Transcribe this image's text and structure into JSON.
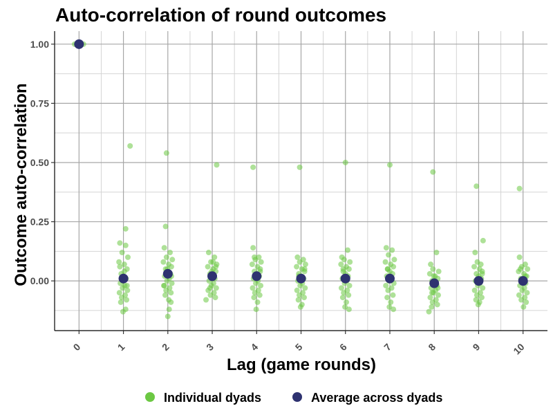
{
  "chart_data": {
    "type": "scatter",
    "title": "Auto-correlation of round outcomes",
    "xlabel": "Lag (game rounds)",
    "ylabel": "Outcome auto-correlation",
    "x_ticks": [
      "0",
      "1",
      "2",
      "3",
      "4",
      "5",
      "6",
      "7",
      "8",
      "9",
      "10"
    ],
    "y_ticks": [
      "0.00",
      "0.25",
      "0.50",
      "0.75",
      "1.00"
    ],
    "xlim": [
      -0.55,
      10.55
    ],
    "ylim": [
      -0.21,
      1.055
    ],
    "grid": true,
    "legend_position": "bottom",
    "colors": {
      "individual": "#6cc843",
      "average": "#2e3270"
    },
    "series": [
      {
        "name": "Individual dyads",
        "points": [
          [
            -0.05,
            1.0
          ],
          [
            0.03,
            1.0
          ],
          [
            0.1,
            1.0
          ],
          [
            -0.1,
            1.0
          ],
          [
            0.05,
            1.0
          ],
          [
            0.92,
            0.16
          ],
          [
            1.05,
            0.15
          ],
          [
            0.97,
            0.12
          ],
          [
            1.1,
            0.1
          ],
          [
            0.9,
            0.08
          ],
          [
            1.02,
            0.07
          ],
          [
            1.08,
            0.05
          ],
          [
            0.95,
            0.03
          ],
          [
            1.0,
            0.02
          ],
          [
            1.06,
            0.01
          ],
          [
            0.93,
            -0.01
          ],
          [
            1.03,
            -0.02
          ],
          [
            0.98,
            -0.03
          ],
          [
            1.09,
            -0.04
          ],
          [
            0.91,
            -0.05
          ],
          [
            1.04,
            -0.06
          ],
          [
            0.96,
            -0.07
          ],
          [
            1.07,
            -0.08
          ],
          [
            0.94,
            -0.09
          ],
          [
            1.02,
            0.04
          ],
          [
            0.99,
            0.0
          ],
          [
            1.08,
            -0.02
          ],
          [
            0.92,
            0.06
          ],
          [
            1.05,
            0.22
          ],
          [
            1.15,
            0.57
          ],
          [
            0.99,
            -0.13
          ],
          [
            1.05,
            -0.12
          ],
          [
            1.92,
            0.14
          ],
          [
            2.05,
            0.12
          ],
          [
            1.97,
            0.1
          ],
          [
            2.1,
            0.09
          ],
          [
            1.9,
            0.08
          ],
          [
            2.02,
            0.07
          ],
          [
            2.08,
            0.06
          ],
          [
            1.95,
            0.05
          ],
          [
            2.0,
            0.04
          ],
          [
            2.06,
            0.03
          ],
          [
            1.93,
            0.02
          ],
          [
            2.03,
            0.01
          ],
          [
            1.98,
            0.0
          ],
          [
            2.09,
            -0.01
          ],
          [
            1.91,
            -0.02
          ],
          [
            2.04,
            -0.03
          ],
          [
            1.96,
            -0.04
          ],
          [
            2.07,
            -0.05
          ],
          [
            1.94,
            -0.06
          ],
          [
            2.02,
            -0.08
          ],
          [
            1.99,
            0.05
          ],
          [
            2.08,
            0.02
          ],
          [
            1.95,
            0.23
          ],
          [
            1.97,
            0.54
          ],
          [
            2.03,
            -0.12
          ],
          [
            2.0,
            -0.15
          ],
          [
            2.07,
            -0.09
          ],
          [
            1.92,
            -0.02
          ],
          [
            2.92,
            0.12
          ],
          [
            3.05,
            0.1
          ],
          [
            2.97,
            0.08
          ],
          [
            3.1,
            0.07
          ],
          [
            2.9,
            0.06
          ],
          [
            3.02,
            0.05
          ],
          [
            3.08,
            0.04
          ],
          [
            2.95,
            0.03
          ],
          [
            3.0,
            0.02
          ],
          [
            3.06,
            0.01
          ],
          [
            2.93,
            0.0
          ],
          [
            3.03,
            -0.01
          ],
          [
            2.98,
            -0.02
          ],
          [
            3.09,
            -0.03
          ],
          [
            2.91,
            -0.04
          ],
          [
            3.04,
            -0.05
          ],
          [
            2.96,
            -0.06
          ],
          [
            3.07,
            -0.07
          ],
          [
            2.86,
            -0.08
          ],
          [
            3.02,
            0.08
          ],
          [
            2.99,
            0.04
          ],
          [
            3.08,
            0.06
          ],
          [
            2.95,
            -0.03
          ],
          [
            3.1,
            0.49
          ],
          [
            3.92,
            0.14
          ],
          [
            4.05,
            0.1
          ],
          [
            3.97,
            0.09
          ],
          [
            4.1,
            0.08
          ],
          [
            3.9,
            0.07
          ],
          [
            4.02,
            0.06
          ],
          [
            4.08,
            0.05
          ],
          [
            3.95,
            0.04
          ],
          [
            4.0,
            0.03
          ],
          [
            4.06,
            0.02
          ],
          [
            3.93,
            0.01
          ],
          [
            4.03,
            0.0
          ],
          [
            3.98,
            -0.01
          ],
          [
            4.09,
            -0.02
          ],
          [
            3.91,
            -0.03
          ],
          [
            4.04,
            -0.04
          ],
          [
            3.96,
            -0.05
          ],
          [
            4.07,
            -0.06
          ],
          [
            3.94,
            -0.07
          ],
          [
            4.02,
            -0.09
          ],
          [
            3.99,
            -0.12
          ],
          [
            4.08,
            0.04
          ],
          [
            3.95,
            0.1
          ],
          [
            3.92,
            0.48
          ],
          [
            4.92,
            0.1
          ],
          [
            5.05,
            0.09
          ],
          [
            4.97,
            0.08
          ],
          [
            5.1,
            0.07
          ],
          [
            4.9,
            0.06
          ],
          [
            5.02,
            0.05
          ],
          [
            5.08,
            0.04
          ],
          [
            4.95,
            0.03
          ],
          [
            5.0,
            0.02
          ],
          [
            5.06,
            0.01
          ],
          [
            4.93,
            0.0
          ],
          [
            5.03,
            -0.01
          ],
          [
            4.98,
            -0.02
          ],
          [
            5.09,
            -0.03
          ],
          [
            4.91,
            -0.04
          ],
          [
            5.04,
            -0.05
          ],
          [
            4.96,
            -0.06
          ],
          [
            5.07,
            -0.07
          ],
          [
            4.94,
            -0.08
          ],
          [
            5.02,
            -0.1
          ],
          [
            4.99,
            -0.11
          ],
          [
            5.08,
            0.05
          ],
          [
            4.95,
            0.02
          ],
          [
            4.97,
            0.48
          ],
          [
            5.92,
            0.1
          ],
          [
            6.05,
            0.13
          ],
          [
            5.97,
            0.09
          ],
          [
            6.1,
            0.08
          ],
          [
            5.9,
            0.07
          ],
          [
            6.02,
            0.06
          ],
          [
            6.08,
            0.05
          ],
          [
            5.95,
            0.04
          ],
          [
            6.0,
            0.03
          ],
          [
            6.06,
            0.02
          ],
          [
            5.93,
            0.01
          ],
          [
            6.03,
            0.0
          ],
          [
            5.98,
            -0.01
          ],
          [
            6.09,
            -0.02
          ],
          [
            5.91,
            -0.03
          ],
          [
            6.04,
            -0.04
          ],
          [
            5.96,
            -0.05
          ],
          [
            6.07,
            -0.06
          ],
          [
            5.94,
            -0.07
          ],
          [
            6.02,
            -0.09
          ],
          [
            5.99,
            -0.11
          ],
          [
            6.08,
            -0.12
          ],
          [
            5.95,
            0.05
          ],
          [
            6.0,
            0.5
          ],
          [
            6.92,
            0.14
          ],
          [
            7.05,
            0.13
          ],
          [
            6.97,
            0.11
          ],
          [
            7.1,
            0.09
          ],
          [
            6.9,
            0.08
          ],
          [
            7.02,
            0.07
          ],
          [
            7.08,
            0.06
          ],
          [
            6.95,
            0.05
          ],
          [
            7.0,
            0.04
          ],
          [
            7.06,
            0.03
          ],
          [
            6.93,
            0.02
          ],
          [
            7.03,
            0.01
          ],
          [
            6.98,
            0.0
          ],
          [
            7.09,
            -0.01
          ],
          [
            6.91,
            -0.02
          ],
          [
            7.04,
            -0.03
          ],
          [
            6.96,
            -0.04
          ],
          [
            7.07,
            -0.06
          ],
          [
            6.94,
            -0.07
          ],
          [
            7.02,
            -0.09
          ],
          [
            6.99,
            -0.11
          ],
          [
            7.08,
            -0.12
          ],
          [
            6.95,
            0.05
          ],
          [
            7.0,
            0.49
          ],
          [
            7.92,
            0.07
          ],
          [
            8.05,
            0.12
          ],
          [
            7.97,
            0.05
          ],
          [
            8.1,
            0.04
          ],
          [
            7.9,
            0.03
          ],
          [
            8.02,
            0.02
          ],
          [
            8.08,
            0.01
          ],
          [
            7.95,
            0.0
          ],
          [
            8.0,
            -0.01
          ],
          [
            8.06,
            -0.02
          ],
          [
            7.93,
            -0.03
          ],
          [
            8.03,
            -0.04
          ],
          [
            7.98,
            -0.05
          ],
          [
            8.09,
            -0.06
          ],
          [
            7.91,
            -0.07
          ],
          [
            8.04,
            -0.08
          ],
          [
            7.96,
            -0.09
          ],
          [
            8.07,
            -0.1
          ],
          [
            7.94,
            -0.11
          ],
          [
            7.88,
            -0.13
          ],
          [
            7.99,
            0.02
          ],
          [
            8.08,
            -0.03
          ],
          [
            7.95,
            -0.05
          ],
          [
            7.97,
            0.46
          ],
          [
            8.92,
            0.12
          ],
          [
            9.1,
            0.17
          ],
          [
            8.97,
            0.08
          ],
          [
            9.05,
            0.07
          ],
          [
            8.9,
            0.06
          ],
          [
            9.02,
            0.05
          ],
          [
            9.08,
            0.04
          ],
          [
            8.95,
            0.03
          ],
          [
            9.0,
            0.02
          ],
          [
            9.06,
            0.01
          ],
          [
            8.93,
            0.0
          ],
          [
            9.03,
            -0.01
          ],
          [
            8.98,
            -0.02
          ],
          [
            9.09,
            -0.03
          ],
          [
            8.91,
            -0.04
          ],
          [
            9.04,
            -0.05
          ],
          [
            8.96,
            -0.06
          ],
          [
            9.07,
            -0.07
          ],
          [
            8.94,
            -0.08
          ],
          [
            9.02,
            -0.09
          ],
          [
            8.99,
            -0.1
          ],
          [
            9.08,
            0.03
          ],
          [
            8.95,
            0.4
          ],
          [
            9.92,
            0.1
          ],
          [
            10.05,
            0.07
          ],
          [
            9.97,
            0.06
          ],
          [
            10.1,
            0.05
          ],
          [
            9.9,
            0.04
          ],
          [
            10.02,
            0.03
          ],
          [
            10.08,
            0.02
          ],
          [
            9.95,
            0.01
          ],
          [
            10.0,
            0.0
          ],
          [
            10.06,
            -0.01
          ],
          [
            9.93,
            -0.02
          ],
          [
            10.03,
            -0.03
          ],
          [
            9.98,
            -0.04
          ],
          [
            10.09,
            -0.05
          ],
          [
            9.91,
            -0.06
          ],
          [
            10.04,
            -0.07
          ],
          [
            9.96,
            -0.08
          ],
          [
            10.07,
            -0.09
          ],
          [
            10.01,
            -0.11
          ],
          [
            9.94,
            0.05
          ],
          [
            10.05,
            0.02
          ],
          [
            9.92,
            0.39
          ]
        ]
      },
      {
        "name": "Average across dyads",
        "points": [
          [
            0,
            1.0
          ],
          [
            1,
            0.01
          ],
          [
            2,
            0.03
          ],
          [
            3,
            0.02
          ],
          [
            4,
            0.02
          ],
          [
            5,
            0.01
          ],
          [
            6,
            0.01
          ],
          [
            7,
            0.01
          ],
          [
            8,
            -0.01
          ],
          [
            9,
            0.0
          ],
          [
            10,
            0.0
          ]
        ]
      }
    ]
  }
}
